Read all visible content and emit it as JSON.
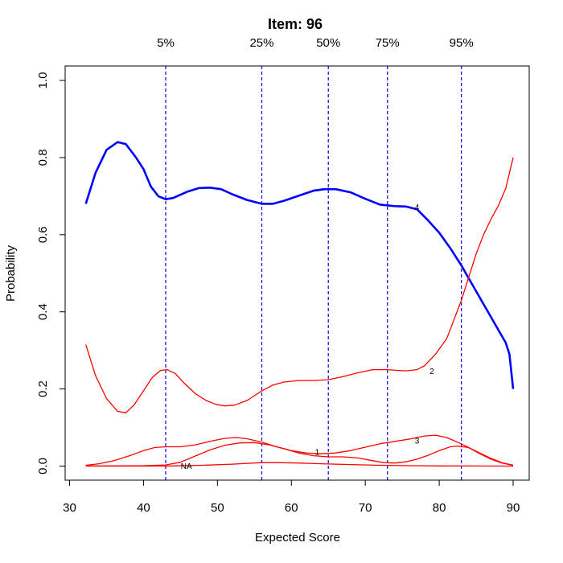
{
  "chart_data": {
    "type": "line",
    "title": "Item:  96",
    "xlabel": "Expected Score",
    "ylabel": "Probability",
    "xlim": [
      30,
      90
    ],
    "ylim": [
      0,
      1
    ],
    "x_ticks": [
      30,
      40,
      50,
      60,
      70,
      80,
      90
    ],
    "y_ticks": [
      "0.0",
      "0.2",
      "0.4",
      "0.6",
      "0.8",
      "1.0"
    ],
    "grid": false,
    "quantiles": [
      {
        "label": "5%",
        "x": 43
      },
      {
        "label": "25%",
        "x": 56
      },
      {
        "label": "50%",
        "x": 65
      },
      {
        "label": "75%",
        "x": 73
      },
      {
        "label": "95%",
        "x": 83
      }
    ],
    "colors": {
      "highlight": "#0000ff",
      "other": "#ff0000",
      "quantile_line": "#0000ff"
    },
    "series": [
      {
        "name": "4",
        "highlight": true,
        "label_at": [
          77,
          0.67
        ],
        "points": [
          [
            32.2,
            0.68
          ],
          [
            33.5,
            0.76
          ],
          [
            35,
            0.82
          ],
          [
            36.5,
            0.84
          ],
          [
            37.6,
            0.835
          ],
          [
            39,
            0.8
          ],
          [
            40,
            0.77
          ],
          [
            41,
            0.725
          ],
          [
            42,
            0.7
          ],
          [
            43,
            0.692
          ],
          [
            44,
            0.695
          ],
          [
            46,
            0.712
          ],
          [
            47.5,
            0.721
          ],
          [
            49,
            0.722
          ],
          [
            50.5,
            0.718
          ],
          [
            52,
            0.705
          ],
          [
            54,
            0.69
          ],
          [
            56,
            0.68
          ],
          [
            57.5,
            0.68
          ],
          [
            59,
            0.688
          ],
          [
            61,
            0.701
          ],
          [
            63,
            0.714
          ],
          [
            64.5,
            0.718
          ],
          [
            66,
            0.718
          ],
          [
            68,
            0.71
          ],
          [
            70,
            0.693
          ],
          [
            72,
            0.678
          ],
          [
            74,
            0.674
          ],
          [
            75.5,
            0.673
          ],
          [
            77,
            0.666
          ],
          [
            78.5,
            0.637
          ],
          [
            80,
            0.605
          ],
          [
            81.5,
            0.565
          ],
          [
            83,
            0.52
          ],
          [
            84.5,
            0.47
          ],
          [
            86,
            0.42
          ],
          [
            87.5,
            0.37
          ],
          [
            89,
            0.32
          ],
          [
            89.5,
            0.29
          ],
          [
            90,
            0.2
          ]
        ]
      },
      {
        "name": "2",
        "highlight": false,
        "label_at": [
          79,
          0.245
        ],
        "points": [
          [
            32.2,
            0.315
          ],
          [
            33.5,
            0.235
          ],
          [
            35,
            0.175
          ],
          [
            36.5,
            0.142
          ],
          [
            37.6,
            0.138
          ],
          [
            38.7,
            0.158
          ],
          [
            40,
            0.195
          ],
          [
            41.2,
            0.23
          ],
          [
            42.3,
            0.248
          ],
          [
            43.2,
            0.25
          ],
          [
            44.3,
            0.24
          ],
          [
            45.5,
            0.215
          ],
          [
            47,
            0.188
          ],
          [
            48.5,
            0.17
          ],
          [
            49.8,
            0.16
          ],
          [
            51,
            0.156
          ],
          [
            52.3,
            0.158
          ],
          [
            54,
            0.17
          ],
          [
            56,
            0.195
          ],
          [
            57.5,
            0.21
          ],
          [
            59,
            0.218
          ],
          [
            61,
            0.222
          ],
          [
            63,
            0.222
          ],
          [
            65,
            0.224
          ],
          [
            67,
            0.232
          ],
          [
            69,
            0.242
          ],
          [
            71,
            0.25
          ],
          [
            73,
            0.25
          ],
          [
            74.5,
            0.248
          ],
          [
            75.5,
            0.247
          ],
          [
            77,
            0.25
          ],
          [
            78,
            0.26
          ],
          [
            79.5,
            0.29
          ],
          [
            81,
            0.33
          ],
          [
            82,
            0.38
          ],
          [
            83,
            0.43
          ],
          [
            84,
            0.49
          ],
          [
            85,
            0.55
          ],
          [
            86,
            0.6
          ],
          [
            87,
            0.64
          ],
          [
            88,
            0.675
          ],
          [
            89,
            0.72
          ],
          [
            90,
            0.8
          ]
        ]
      },
      {
        "name": "1",
        "highlight": false,
        "label_at": [
          63.5,
          0.035
        ],
        "points": [
          [
            32.2,
            0.002
          ],
          [
            34,
            0.006
          ],
          [
            36,
            0.014
          ],
          [
            38,
            0.026
          ],
          [
            40,
            0.04
          ],
          [
            41.5,
            0.048
          ],
          [
            43,
            0.05
          ],
          [
            45,
            0.05
          ],
          [
            47,
            0.055
          ],
          [
            49,
            0.064
          ],
          [
            51,
            0.072
          ],
          [
            52.5,
            0.074
          ],
          [
            54,
            0.071
          ],
          [
            56,
            0.062
          ],
          [
            58,
            0.05
          ],
          [
            60,
            0.04
          ],
          [
            62,
            0.034
          ],
          [
            64,
            0.032
          ],
          [
            66,
            0.034
          ],
          [
            68,
            0.04
          ],
          [
            70,
            0.049
          ],
          [
            72,
            0.058
          ],
          [
            74,
            0.064
          ],
          [
            76,
            0.07
          ],
          [
            78,
            0.078
          ],
          [
            79.5,
            0.08
          ],
          [
            81,
            0.074
          ],
          [
            82.5,
            0.062
          ],
          [
            84,
            0.048
          ],
          [
            85.5,
            0.032
          ],
          [
            87,
            0.018
          ],
          [
            88.5,
            0.008
          ],
          [
            90,
            0.002
          ]
        ]
      },
      {
        "name": "3",
        "highlight": false,
        "label_at": [
          77,
          0.065
        ],
        "points": [
          [
            32.2,
            0.0005
          ],
          [
            36,
            0.0005
          ],
          [
            40,
            0.001
          ],
          [
            43,
            0.003
          ],
          [
            45,
            0.01
          ],
          [
            47,
            0.026
          ],
          [
            49,
            0.042
          ],
          [
            51,
            0.054
          ],
          [
            53,
            0.06
          ],
          [
            55,
            0.061
          ],
          [
            57,
            0.055
          ],
          [
            59,
            0.045
          ],
          [
            61,
            0.034
          ],
          [
            63,
            0.027
          ],
          [
            65,
            0.024
          ],
          [
            67,
            0.024
          ],
          [
            69,
            0.021
          ],
          [
            71,
            0.014
          ],
          [
            72.5,
            0.009
          ],
          [
            74,
            0.008
          ],
          [
            75.5,
            0.011
          ],
          [
            77,
            0.018
          ],
          [
            78.5,
            0.028
          ],
          [
            80,
            0.04
          ],
          [
            81.5,
            0.05
          ],
          [
            82.5,
            0.052
          ],
          [
            84,
            0.048
          ],
          [
            85.5,
            0.034
          ],
          [
            87,
            0.02
          ],
          [
            88.5,
            0.009
          ],
          [
            90,
            0.002
          ]
        ]
      },
      {
        "name": "NA",
        "highlight": false,
        "label_at": [
          45.8,
          -0.001
        ],
        "points": [
          [
            32.2,
            0
          ],
          [
            40,
            0
          ],
          [
            44,
            0.0005
          ],
          [
            48,
            0.002
          ],
          [
            52,
            0.005
          ],
          [
            56,
            0.009
          ],
          [
            58,
            0.009
          ],
          [
            61,
            0.008
          ],
          [
            64,
            0.006
          ],
          [
            68,
            0.004
          ],
          [
            72,
            0.002
          ],
          [
            76,
            0.001
          ],
          [
            80,
            0.0005
          ],
          [
            85,
            0.0002
          ],
          [
            90,
            0
          ]
        ]
      }
    ]
  }
}
